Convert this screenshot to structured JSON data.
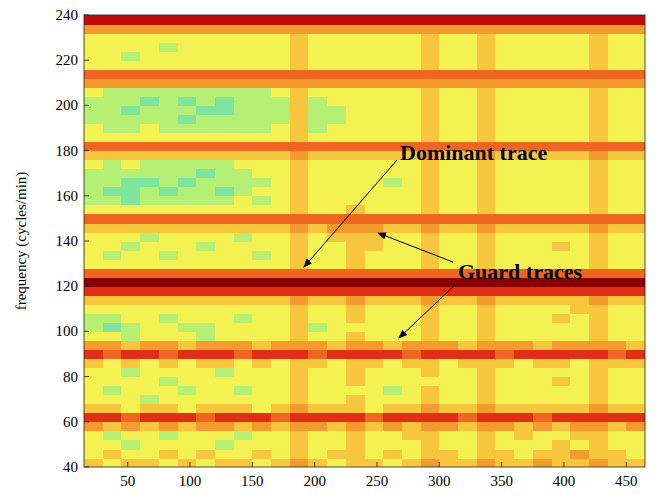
{
  "chart_data": {
    "type": "heatmap",
    "y_label": "frequency (cycles/min)",
    "annotations": [
      "Dominant trace",
      "Guard traces"
    ],
    "xlim": [
      15,
      465
    ],
    "ylim": [
      40,
      240
    ],
    "xticks": [
      50,
      100,
      150,
      200,
      250,
      300,
      350,
      400,
      450
    ],
    "yticks": [
      40,
      60,
      80,
      100,
      120,
      140,
      160,
      180,
      200,
      220,
      240
    ],
    "zlim": [
      0,
      9
    ],
    "x_edges": [
      15,
      30,
      45,
      60,
      75,
      90,
      105,
      120,
      135,
      150,
      165,
      180,
      195,
      210,
      225,
      240,
      255,
      270,
      285,
      300,
      315,
      330,
      345,
      360,
      375,
      390,
      405,
      420,
      435,
      450,
      465
    ],
    "y_edges": [
      40,
      44,
      48,
      52,
      56,
      60,
      64,
      68,
      72,
      76,
      80,
      84,
      88,
      92,
      96,
      100,
      104,
      108,
      112,
      116,
      120,
      124,
      128,
      132,
      136,
      140,
      144,
      148,
      152,
      156,
      160,
      164,
      168,
      172,
      176,
      180,
      184,
      188,
      192,
      196,
      200,
      204,
      208,
      212,
      216,
      220,
      224,
      228,
      232,
      236,
      240
    ],
    "cells": [
      [
        4,
        3,
        4,
        4,
        3,
        4,
        3,
        4,
        4,
        3,
        4,
        5,
        4,
        3,
        4,
        4,
        3,
        4,
        5,
        4,
        4,
        5,
        4,
        4,
        5,
        4,
        4,
        5,
        4,
        4
      ],
      [
        3,
        4,
        3,
        3,
        4,
        3,
        4,
        3,
        3,
        4,
        3,
        4,
        3,
        4,
        4,
        3,
        4,
        3,
        4,
        4,
        3,
        4,
        4,
        3,
        4,
        4,
        5,
        4,
        4,
        3
      ],
      [
        3,
        3,
        2,
        3,
        3,
        3,
        3,
        2,
        3,
        3,
        3,
        4,
        3,
        3,
        4,
        3,
        3,
        3,
        4,
        3,
        3,
        4,
        3,
        3,
        3,
        4,
        3,
        4,
        3,
        3
      ],
      [
        3,
        2,
        3,
        3,
        2,
        3,
        3,
        3,
        2,
        3,
        3,
        4,
        3,
        3,
        4,
        3,
        3,
        4,
        4,
        3,
        3,
        4,
        3,
        4,
        3,
        3,
        4,
        4,
        3,
        3
      ],
      [
        5,
        4,
        5,
        4,
        5,
        4,
        5,
        5,
        4,
        5,
        4,
        5,
        5,
        4,
        5,
        4,
        5,
        4,
        5,
        5,
        4,
        5,
        5,
        4,
        5,
        4,
        5,
        5,
        4,
        5
      ],
      [
        7,
        7,
        6,
        7,
        7,
        7,
        6,
        7,
        7,
        7,
        6,
        7,
        7,
        7,
        7,
        6,
        7,
        7,
        7,
        7,
        6,
        7,
        7,
        7,
        6,
        7,
        7,
        7,
        7,
        7
      ],
      [
        4,
        4,
        3,
        4,
        4,
        3,
        4,
        4,
        4,
        3,
        4,
        5,
        4,
        4,
        4,
        3,
        4,
        4,
        5,
        4,
        4,
        5,
        4,
        4,
        4,
        4,
        4,
        5,
        4,
        4
      ],
      [
        3,
        3,
        3,
        2,
        3,
        3,
        3,
        3,
        3,
        3,
        3,
        4,
        3,
        3,
        4,
        3,
        3,
        3,
        4,
        3,
        3,
        4,
        3,
        3,
        3,
        3,
        3,
        4,
        3,
        3
      ],
      [
        3,
        2,
        3,
        3,
        3,
        2,
        3,
        3,
        2,
        3,
        3,
        4,
        3,
        3,
        3,
        3,
        2,
        3,
        4,
        3,
        3,
        4,
        3,
        3,
        3,
        3,
        3,
        4,
        3,
        3
      ],
      [
        3,
        3,
        3,
        3,
        2,
        3,
        3,
        3,
        3,
        3,
        3,
        4,
        3,
        3,
        4,
        3,
        3,
        3,
        3,
        3,
        3,
        4,
        3,
        3,
        3,
        4,
        3,
        4,
        3,
        3
      ],
      [
        3,
        3,
        2,
        3,
        3,
        3,
        3,
        2,
        3,
        3,
        3,
        4,
        3,
        3,
        4,
        3,
        3,
        3,
        4,
        3,
        3,
        4,
        3,
        3,
        3,
        3,
        3,
        4,
        3,
        3
      ],
      [
        4,
        3,
        4,
        3,
        4,
        3,
        4,
        4,
        3,
        4,
        3,
        4,
        4,
        3,
        4,
        4,
        3,
        4,
        4,
        3,
        4,
        4,
        4,
        3,
        4,
        4,
        3,
        4,
        4,
        4
      ],
      [
        7,
        6,
        7,
        7,
        6,
        7,
        7,
        7,
        6,
        7,
        7,
        7,
        6,
        7,
        7,
        7,
        7,
        6,
        7,
        7,
        7,
        7,
        6,
        7,
        7,
        7,
        7,
        7,
        6,
        7
      ],
      [
        5,
        5,
        4,
        5,
        5,
        4,
        5,
        5,
        5,
        4,
        5,
        5,
        5,
        4,
        5,
        5,
        4,
        5,
        5,
        5,
        4,
        5,
        5,
        5,
        4,
        5,
        5,
        5,
        5,
        4
      ],
      [
        3,
        3,
        2,
        3,
        3,
        3,
        2,
        3,
        3,
        3,
        3,
        4,
        3,
        3,
        4,
        3,
        3,
        3,
        4,
        3,
        3,
        4,
        3,
        3,
        3,
        3,
        3,
        4,
        3,
        3
      ],
      [
        2,
        1,
        2,
        3,
        3,
        2,
        2,
        3,
        3,
        3,
        3,
        4,
        2,
        3,
        3,
        3,
        3,
        3,
        4,
        3,
        3,
        4,
        3,
        3,
        3,
        3,
        3,
        4,
        3,
        3
      ],
      [
        2,
        2,
        3,
        3,
        2,
        3,
        3,
        3,
        2,
        3,
        3,
        4,
        3,
        3,
        4,
        3,
        3,
        3,
        4,
        3,
        3,
        4,
        3,
        3,
        3,
        4,
        3,
        4,
        3,
        3
      ],
      [
        3,
        3,
        3,
        3,
        3,
        3,
        3,
        3,
        3,
        3,
        3,
        4,
        3,
        3,
        4,
        3,
        3,
        3,
        4,
        3,
        3,
        4,
        3,
        3,
        3,
        3,
        4,
        4,
        3,
        3
      ],
      [
        4,
        4,
        4,
        4,
        4,
        4,
        4,
        4,
        4,
        4,
        4,
        5,
        4,
        4,
        5,
        4,
        4,
        4,
        5,
        4,
        4,
        5,
        4,
        4,
        4,
        4,
        4,
        5,
        4,
        4
      ],
      [
        7,
        7,
        7,
        7,
        7,
        7,
        7,
        7,
        7,
        7,
        7,
        7,
        7,
        7,
        7,
        7,
        7,
        7,
        7,
        7,
        7,
        7,
        7,
        7,
        7,
        7,
        7,
        7,
        7,
        7
      ],
      [
        9,
        9,
        9,
        9,
        9,
        9,
        9,
        9,
        9,
        9,
        9,
        9,
        9,
        9,
        9,
        9,
        9,
        9,
        9,
        9,
        9,
        9,
        9,
        9,
        9,
        9,
        9,
        9,
        9,
        9
      ],
      [
        6,
        6,
        6,
        6,
        6,
        6,
        6,
        6,
        6,
        6,
        6,
        6,
        6,
        6,
        6,
        6,
        6,
        6,
        6,
        6,
        6,
        6,
        6,
        6,
        6,
        6,
        6,
        6,
        6,
        6
      ],
      [
        3,
        3,
        3,
        3,
        3,
        3,
        3,
        3,
        3,
        3,
        3,
        4,
        3,
        3,
        4,
        3,
        3,
        3,
        4,
        3,
        3,
        4,
        3,
        3,
        3,
        3,
        3,
        4,
        3,
        3
      ],
      [
        3,
        2,
        3,
        3,
        2,
        3,
        3,
        3,
        3,
        2,
        3,
        4,
        3,
        3,
        4,
        3,
        3,
        3,
        4,
        3,
        3,
        4,
        3,
        3,
        3,
        3,
        3,
        4,
        3,
        3
      ],
      [
        3,
        3,
        2,
        3,
        3,
        3,
        2,
        3,
        3,
        3,
        3,
        4,
        3,
        3,
        4,
        4,
        3,
        3,
        4,
        3,
        3,
        4,
        3,
        3,
        3,
        4,
        3,
        4,
        3,
        3
      ],
      [
        3,
        3,
        3,
        2,
        3,
        3,
        3,
        3,
        2,
        3,
        3,
        4,
        3,
        4,
        4,
        4,
        3,
        3,
        4,
        3,
        3,
        4,
        3,
        3,
        3,
        3,
        3,
        4,
        3,
        3
      ],
      [
        4,
        4,
        4,
        4,
        4,
        4,
        4,
        4,
        4,
        4,
        4,
        5,
        4,
        5,
        5,
        5,
        4,
        4,
        5,
        4,
        4,
        5,
        4,
        4,
        4,
        4,
        4,
        5,
        4,
        4
      ],
      [
        6,
        6,
        6,
        6,
        6,
        6,
        6,
        6,
        6,
        6,
        6,
        6,
        6,
        6,
        6,
        6,
        6,
        6,
        6,
        6,
        6,
        6,
        6,
        6,
        6,
        6,
        6,
        6,
        6,
        6
      ],
      [
        3,
        3,
        3,
        3,
        3,
        3,
        3,
        3,
        3,
        3,
        3,
        4,
        3,
        3,
        4,
        3,
        3,
        3,
        4,
        3,
        3,
        4,
        3,
        3,
        3,
        3,
        3,
        4,
        3,
        3
      ],
      [
        2,
        2,
        1,
        2,
        2,
        2,
        2,
        2,
        3,
        2,
        3,
        4,
        3,
        3,
        3,
        3,
        3,
        3,
        4,
        3,
        3,
        4,
        3,
        3,
        3,
        3,
        3,
        4,
        3,
        3
      ],
      [
        2,
        1,
        1,
        2,
        1,
        2,
        2,
        1,
        2,
        3,
        3,
        4,
        3,
        3,
        3,
        3,
        3,
        3,
        4,
        3,
        3,
        4,
        3,
        3,
        3,
        3,
        3,
        4,
        3,
        3
      ],
      [
        2,
        2,
        1,
        1,
        2,
        1,
        2,
        2,
        2,
        2,
        3,
        4,
        3,
        3,
        3,
        3,
        2,
        3,
        4,
        3,
        3,
        4,
        3,
        3,
        3,
        3,
        3,
        4,
        3,
        3
      ],
      [
        2,
        2,
        2,
        2,
        2,
        2,
        1,
        2,
        2,
        3,
        3,
        4,
        3,
        3,
        3,
        3,
        3,
        3,
        4,
        3,
        3,
        4,
        3,
        3,
        3,
        3,
        3,
        4,
        3,
        3
      ],
      [
        3,
        2,
        3,
        2,
        2,
        2,
        2,
        2,
        3,
        3,
        3,
        4,
        3,
        3,
        3,
        3,
        3,
        3,
        4,
        3,
        3,
        4,
        3,
        3,
        3,
        3,
        3,
        4,
        3,
        3
      ],
      [
        4,
        4,
        4,
        4,
        4,
        4,
        4,
        4,
        4,
        4,
        4,
        5,
        4,
        4,
        4,
        4,
        4,
        4,
        5,
        4,
        4,
        5,
        4,
        4,
        4,
        4,
        4,
        5,
        4,
        4
      ],
      [
        6,
        6,
        6,
        6,
        6,
        6,
        6,
        6,
        6,
        6,
        6,
        6,
        6,
        6,
        6,
        6,
        6,
        6,
        6,
        6,
        6,
        6,
        6,
        6,
        6,
        6,
        6,
        6,
        6,
        6
      ],
      [
        3,
        3,
        3,
        3,
        3,
        3,
        3,
        3,
        3,
        3,
        3,
        4,
        3,
        3,
        3,
        3,
        3,
        3,
        4,
        3,
        3,
        4,
        3,
        3,
        3,
        3,
        3,
        4,
        3,
        3
      ],
      [
        3,
        2,
        2,
        3,
        2,
        2,
        2,
        2,
        2,
        2,
        3,
        4,
        2,
        3,
        3,
        3,
        3,
        3,
        4,
        3,
        3,
        4,
        3,
        3,
        3,
        3,
        3,
        4,
        3,
        3
      ],
      [
        2,
        2,
        2,
        2,
        2,
        1,
        2,
        2,
        2,
        2,
        2,
        4,
        2,
        2,
        3,
        3,
        3,
        3,
        4,
        3,
        3,
        4,
        3,
        3,
        3,
        3,
        3,
        4,
        3,
        3
      ],
      [
        2,
        2,
        1,
        2,
        2,
        2,
        1,
        1,
        2,
        2,
        2,
        4,
        2,
        2,
        3,
        3,
        3,
        3,
        4,
        3,
        3,
        4,
        3,
        3,
        3,
        3,
        3,
        4,
        3,
        3
      ],
      [
        2,
        2,
        2,
        1,
        2,
        1,
        2,
        1,
        2,
        2,
        2,
        4,
        2,
        3,
        3,
        3,
        3,
        3,
        4,
        3,
        3,
        4,
        3,
        3,
        3,
        3,
        3,
        4,
        3,
        3
      ],
      [
        3,
        2,
        2,
        2,
        2,
        2,
        2,
        2,
        2,
        2,
        3,
        4,
        3,
        3,
        3,
        3,
        3,
        3,
        4,
        3,
        3,
        4,
        3,
        3,
        3,
        3,
        3,
        4,
        3,
        3
      ],
      [
        5,
        5,
        5,
        5,
        5,
        5,
        5,
        5,
        5,
        5,
        5,
        5,
        5,
        5,
        5,
        5,
        5,
        5,
        5,
        5,
        5,
        5,
        5,
        5,
        5,
        5,
        5,
        5,
        5,
        5
      ],
      [
        6,
        6,
        6,
        6,
        6,
        6,
        6,
        6,
        6,
        6,
        6,
        6,
        6,
        6,
        6,
        6,
        6,
        6,
        6,
        6,
        6,
        6,
        6,
        6,
        6,
        6,
        6,
        6,
        6,
        6
      ],
      [
        3,
        3,
        3,
        3,
        3,
        3,
        3,
        3,
        3,
        3,
        3,
        4,
        3,
        3,
        3,
        3,
        3,
        3,
        4,
        3,
        3,
        4,
        3,
        3,
        3,
        3,
        3,
        4,
        3,
        3
      ],
      [
        3,
        3,
        2,
        3,
        3,
        3,
        3,
        3,
        3,
        3,
        3,
        4,
        3,
        3,
        3,
        3,
        3,
        3,
        4,
        3,
        3,
        4,
        3,
        3,
        3,
        3,
        3,
        4,
        3,
        3
      ],
      [
        3,
        3,
        3,
        3,
        2,
        3,
        3,
        3,
        3,
        3,
        3,
        4,
        3,
        3,
        3,
        3,
        3,
        3,
        4,
        3,
        3,
        4,
        3,
        3,
        3,
        3,
        3,
        4,
        3,
        3
      ],
      [
        3,
        3,
        3,
        3,
        3,
        3,
        3,
        3,
        3,
        3,
        3,
        4,
        3,
        3,
        3,
        3,
        3,
        3,
        4,
        3,
        3,
        4,
        3,
        3,
        3,
        3,
        3,
        4,
        3,
        3
      ],
      [
        5,
        5,
        5,
        5,
        5,
        5,
        5,
        5,
        5,
        5,
        5,
        5,
        5,
        5,
        5,
        5,
        5,
        5,
        5,
        5,
        5,
        5,
        5,
        5,
        5,
        5,
        5,
        5,
        5,
        5
      ],
      [
        8,
        8,
        8,
        8,
        8,
        8,
        8,
        8,
        8,
        8,
        8,
        8,
        8,
        8,
        8,
        8,
        8,
        8,
        8,
        8,
        8,
        8,
        8,
        8,
        8,
        8,
        8,
        8,
        8,
        8
      ]
    ]
  }
}
